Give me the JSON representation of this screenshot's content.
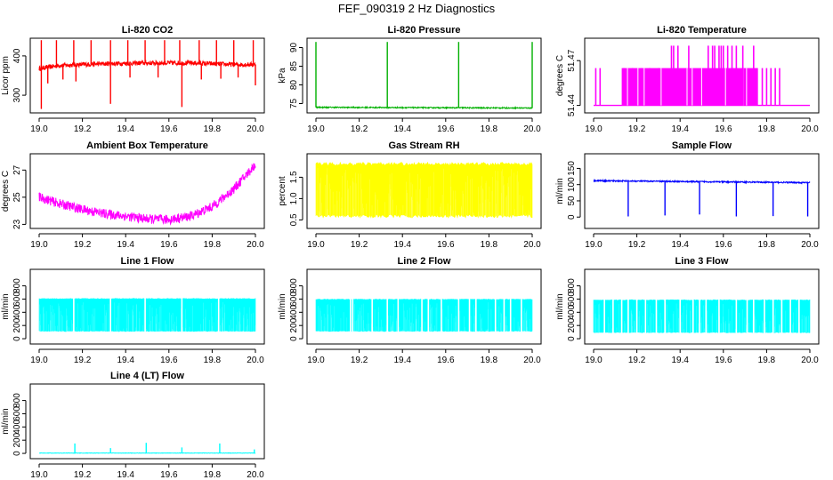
{
  "figure": {
    "title": "FEF_090319  2 Hz Diagnostics"
  },
  "chart_data": [
    {
      "id": "co2",
      "type": "line",
      "title": "Li-820 CO2",
      "ylabel": "Licor ppm",
      "color": "#ff0000",
      "x_range": [
        19.0,
        20.0
      ],
      "ylim": [
        255,
        445
      ],
      "yticks": [
        300,
        400
      ],
      "xticks": [
        "19.0",
        "19.2",
        "19.4",
        "19.6",
        "19.8",
        "20.0"
      ],
      "baseline": [
        [
          19.0,
          368
        ],
        [
          19.1,
          376
        ],
        [
          19.3,
          380
        ],
        [
          19.5,
          382
        ],
        [
          19.7,
          382
        ],
        [
          19.9,
          378
        ],
        [
          20.0,
          378
        ]
      ],
      "noise": 6,
      "spikes_up": [
        19.01,
        19.08,
        19.16,
        19.24,
        19.33,
        19.41,
        19.49,
        19.58,
        19.65,
        19.74,
        19.82,
        19.9,
        19.99
      ],
      "spike_up_to": 440,
      "spikes_down": [
        [
          19.01,
          265
        ],
        [
          19.04,
          330
        ],
        [
          19.11,
          340
        ],
        [
          19.17,
          335
        ],
        [
          19.33,
          278
        ],
        [
          19.42,
          345
        ],
        [
          19.55,
          345
        ],
        [
          19.66,
          270
        ],
        [
          19.75,
          340
        ],
        [
          19.84,
          342
        ],
        [
          19.92,
          345
        ],
        [
          20.0,
          325
        ]
      ]
    },
    {
      "id": "pressure",
      "type": "line",
      "title": "Li-820 Pressure",
      "ylabel": "kPa",
      "color": "#00b000",
      "x_range": [
        19.0,
        20.0
      ],
      "ylim": [
        72.5,
        92.5
      ],
      "yticks": [
        75,
        80,
        85,
        90
      ],
      "xticks": [
        "19.0",
        "19.2",
        "19.4",
        "19.6",
        "19.8",
        "20.0"
      ],
      "baseline": [
        [
          19.0,
          74.0
        ],
        [
          20.0,
          73.8
        ]
      ],
      "noise": 0.15,
      "spikes_up": [
        19.0,
        19.33,
        19.66,
        20.0
      ],
      "spike_up_to": 91.5,
      "spikes_down": []
    },
    {
      "id": "licor_temp",
      "type": "bars",
      "title": "Li-820 Temperature",
      "ylabel": "degrees C",
      "color": "#ff00ff",
      "x_range": [
        19.0,
        20.0
      ],
      "ylim": [
        51.435,
        51.485
      ],
      "yticks": [
        51.44,
        51.47
      ],
      "xticks": [
        "19.0",
        "19.2",
        "19.4",
        "19.6",
        "19.8",
        "20.0"
      ],
      "base_level": 51.44,
      "mid_level": 51.465,
      "high_level": 51.48,
      "mid_segments": [
        [
          19.13,
          19.76
        ]
      ],
      "mid_lines": [
        19.01,
        19.03,
        19.14,
        19.18,
        19.22,
        19.26,
        19.3,
        19.78,
        19.8,
        19.82,
        19.84,
        19.86
      ],
      "high_lines": [
        19.36,
        19.37,
        19.39,
        19.44,
        19.53,
        19.55,
        19.56,
        19.58,
        19.59,
        19.6,
        19.62,
        19.64,
        19.66,
        19.69,
        19.74
      ]
    },
    {
      "id": "ambient",
      "type": "line",
      "title": "Ambient Box Temperature",
      "ylabel": "degrees C",
      "color": "#ff00ff",
      "x_range": [
        19.0,
        20.0
      ],
      "ylim": [
        22.7,
        28.2
      ],
      "yticks": [
        23,
        25,
        27
      ],
      "xticks": [
        "19.0",
        "19.2",
        "19.4",
        "19.6",
        "19.8",
        "20.0"
      ],
      "baseline": [
        [
          19.0,
          25.0
        ],
        [
          19.1,
          24.5
        ],
        [
          19.2,
          24.1
        ],
        [
          19.3,
          23.8
        ],
        [
          19.4,
          23.6
        ],
        [
          19.5,
          23.4
        ],
        [
          19.6,
          23.35
        ],
        [
          19.7,
          23.6
        ],
        [
          19.8,
          24.3
        ],
        [
          19.9,
          25.6
        ],
        [
          20.0,
          27.4
        ]
      ],
      "noise": 0.35,
      "spikes_up": [],
      "spike_up_to": 0,
      "spikes_down": []
    },
    {
      "id": "rh",
      "type": "band",
      "title": "Gas Stream RH",
      "ylabel": "percent",
      "color": "#ffff00",
      "x_range": [
        19.0,
        20.0
      ],
      "ylim": [
        0.3,
        2.05
      ],
      "yticks": [
        0.5,
        1.0,
        1.5
      ],
      "xticks": [
        "19.0",
        "19.2",
        "19.4",
        "19.6",
        "19.8",
        "20.0"
      ],
      "band_low": 0.55,
      "band_high": 1.85,
      "band_top_variation": 0.08
    },
    {
      "id": "sample",
      "type": "line",
      "title": "Sample Flow",
      "ylabel": "ml/min",
      "color": "#0000ff",
      "x_range": [
        19.0,
        20.0
      ],
      "ylim": [
        -35,
        195
      ],
      "yticks": [
        0,
        50,
        100,
        150
      ],
      "xticks": [
        "19.0",
        "19.2",
        "19.4",
        "19.6",
        "19.8",
        "20.0"
      ],
      "baseline": [
        [
          19.0,
          112
        ],
        [
          20.0,
          106
        ]
      ],
      "noise": 2,
      "spikes_up": [],
      "spike_up_to": 0,
      "spikes_down": [
        [
          19.16,
          2
        ],
        [
          19.33,
          5
        ],
        [
          19.49,
          8
        ],
        [
          19.66,
          2
        ],
        [
          19.83,
          3
        ],
        [
          19.99,
          2
        ]
      ]
    },
    {
      "id": "line1",
      "type": "band",
      "title": "Line 1 Flow",
      "ylabel": "ml/min",
      "color": "#00ffff",
      "x_range": [
        19.0,
        20.0
      ],
      "ylim": [
        -80,
        1050
      ],
      "yticks": [
        0,
        200,
        400,
        600,
        800
      ],
      "xticks": [
        "19.0",
        "19.2",
        "19.4",
        "19.6",
        "19.8",
        "20.0"
      ],
      "band_low": 110,
      "band_high": 610,
      "band_top_variation": 10,
      "gaps": [
        19.16,
        19.33,
        19.49,
        19.66,
        19.83
      ]
    },
    {
      "id": "line2",
      "type": "band",
      "title": "Line 2 Flow",
      "ylabel": "ml/min",
      "color": "#00ffff",
      "x_range": [
        19.0,
        20.0
      ],
      "ylim": [
        -80,
        1050
      ],
      "yticks": [
        0,
        200,
        400,
        600,
        800
      ],
      "xticks": [
        "19.0",
        "19.2",
        "19.4",
        "19.6",
        "19.8",
        "20.0"
      ],
      "band_low": 110,
      "band_high": 600,
      "band_top_variation": 10,
      "gaps": [
        19.16,
        19.17,
        19.26,
        19.33,
        19.38,
        19.49,
        19.52,
        19.58,
        19.66,
        19.71,
        19.74,
        19.83,
        19.87,
        19.9,
        19.95
      ]
    },
    {
      "id": "line3",
      "type": "band",
      "title": "Line 3 Flow",
      "ylabel": "ml/min",
      "color": "#00ffff",
      "x_range": [
        19.0,
        20.0
      ],
      "ylim": [
        -80,
        1050
      ],
      "yticks": [
        0,
        200,
        400,
        600,
        800
      ],
      "xticks": [
        "19.0",
        "19.2",
        "19.4",
        "19.6",
        "19.8",
        "20.0"
      ],
      "band_low": 90,
      "band_high": 590,
      "band_top_variation": 10,
      "gaps": [
        19.05,
        19.09,
        19.13,
        19.16,
        19.2,
        19.24,
        19.29,
        19.33,
        19.4,
        19.46,
        19.49,
        19.52,
        19.58,
        19.66,
        19.71,
        19.74,
        19.79,
        19.83,
        19.87,
        19.91,
        19.95
      ]
    },
    {
      "id": "line4",
      "type": "line",
      "title": "Line 4 (LT) Flow",
      "ylabel": "ml/min",
      "color": "#00ffff",
      "x_range": [
        19.0,
        20.0
      ],
      "ylim": [
        -80,
        1050
      ],
      "yticks": [
        0,
        200,
        400,
        600,
        800
      ],
      "xticks": [
        "19.0",
        "19.2",
        "19.4",
        "19.6",
        "19.8",
        "20.0"
      ],
      "baseline": [
        [
          19.0,
          5
        ],
        [
          20.0,
          5
        ]
      ],
      "noise": 3,
      "spikes_up": [
        19.165,
        19.33,
        19.495,
        19.66,
        19.835,
        19.995
      ],
      "spike_up_heights": [
        150,
        80,
        160,
        90,
        150,
        60
      ],
      "spike_up_to": 150,
      "spikes_down": []
    }
  ]
}
